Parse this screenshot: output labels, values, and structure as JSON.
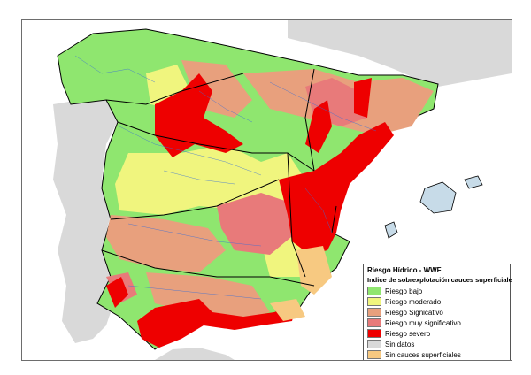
{
  "legend": {
    "title": "Riesgo Hídrico - WWF",
    "subtitle": "Indice de sobrexplotación cauces superficiales",
    "items": [
      {
        "label": "Riesgo bajo",
        "color": "#8fe66f"
      },
      {
        "label": "Riesgo moderado",
        "color": "#f0f57e"
      },
      {
        "label": "Riesgo Signicativo",
        "color": "#e8a07d"
      },
      {
        "label": "Riesgo muy significativo",
        "color": "#e87a7a"
      },
      {
        "label": "Riesgo severo",
        "color": "#ee0000"
      },
      {
        "label": "Sin datos",
        "color": "#d9d9d9"
      },
      {
        "label": "Sin cauces superficiales",
        "color": "#f7c981"
      }
    ]
  },
  "colors": {
    "background_land": "#d9d9d9",
    "sea": "#ffffff",
    "river": "#3a6fd6",
    "border": "#000000"
  }
}
